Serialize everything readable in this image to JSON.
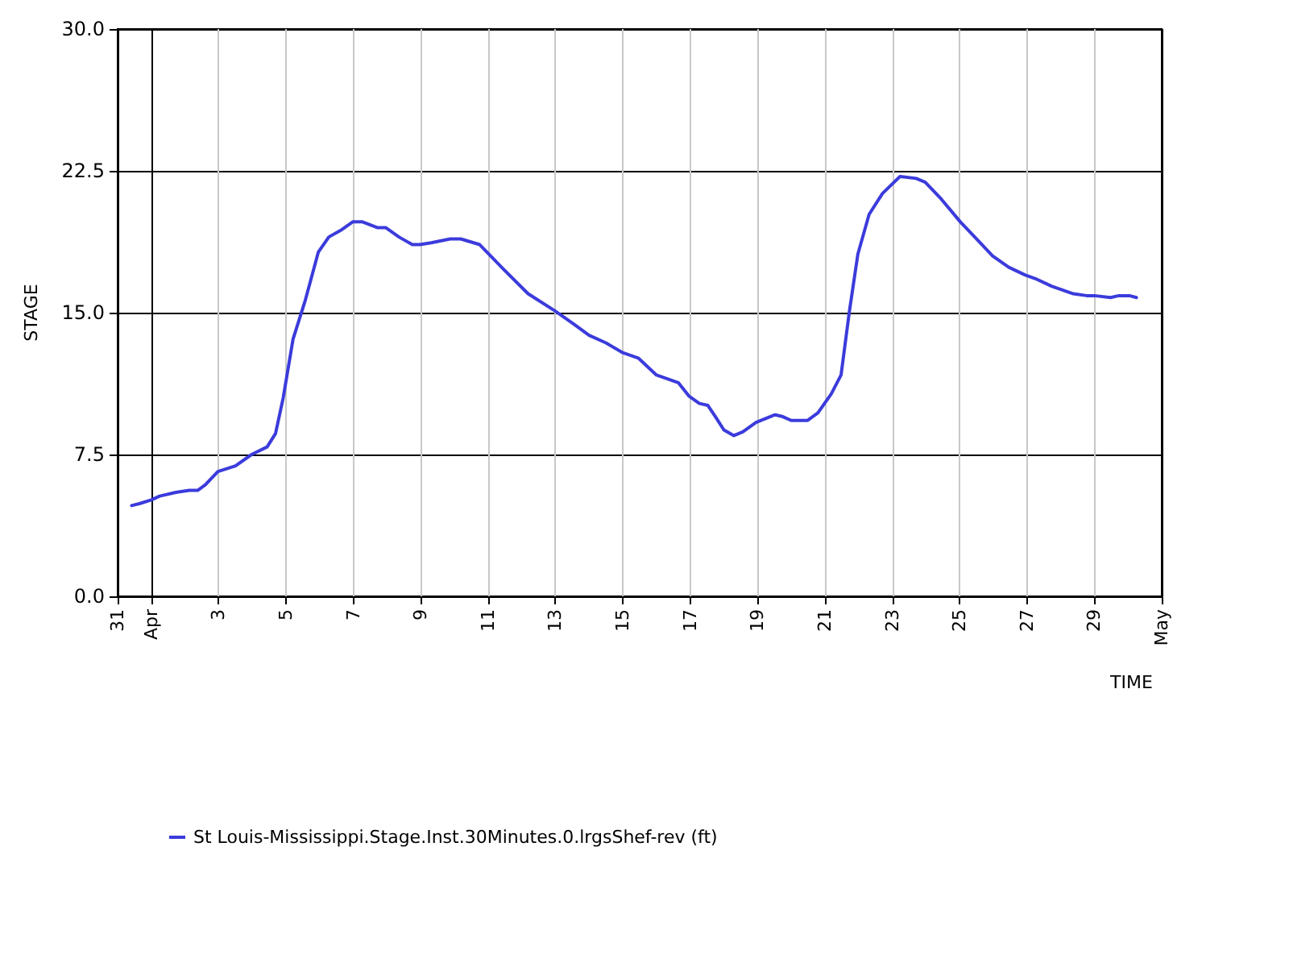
{
  "chart_data": {
    "type": "line",
    "xlabel": "TIME",
    "ylabel": "STAGE",
    "xlim": [
      "--03-31",
      "--05-01"
    ],
    "xticks": [
      {
        "value": "--03-31",
        "label": "31"
      },
      {
        "value": "--04-01",
        "label": "Apr"
      },
      {
        "value": "--04-03",
        "label": "3"
      },
      {
        "value": "--04-05",
        "label": "5"
      },
      {
        "value": "--04-07",
        "label": "7"
      },
      {
        "value": "--04-09",
        "label": "9"
      },
      {
        "value": "--04-11",
        "label": "11"
      },
      {
        "value": "--04-13",
        "label": "13"
      },
      {
        "value": "--04-15",
        "label": "15"
      },
      {
        "value": "--04-17",
        "label": "17"
      },
      {
        "value": "--04-19",
        "label": "19"
      },
      {
        "value": "--04-21",
        "label": "21"
      },
      {
        "value": "--04-23",
        "label": "23"
      },
      {
        "value": "--04-25",
        "label": "25"
      },
      {
        "value": "--04-27",
        "label": "27"
      },
      {
        "value": "--04-29",
        "label": "29"
      },
      {
        "value": "--05-01",
        "label": "May"
      }
    ],
    "ylim": [
      0,
      30
    ],
    "yticks": [
      {
        "value": 0,
        "label": "0.0"
      },
      {
        "value": 7.5,
        "label": "7.5"
      },
      {
        "value": 15,
        "label": "15.0"
      },
      {
        "value": 22.5,
        "label": "22.5"
      },
      {
        "value": 30,
        "label": "30.0"
      }
    ],
    "grid": true,
    "legend": "bottom",
    "marker": "none",
    "line_style": "solid",
    "series": [
      {
        "name": "St Louis-Mississippi.Stage.Inst.30Minutes.0.lrgsShef-rev (ft)",
        "color": "#3b3bdc",
        "x": [
          "--03-31T10:00",
          "--03-31T15:30",
          "--04-01T00:00",
          "--04-01T06:00",
          "--04-01T17:30",
          "--04-02T03:00",
          "--04-02T09:00",
          "--04-02T14:30",
          "--04-02T23:30",
          "--04-03T12:00",
          "--04-03T23:30",
          "--04-04T10:30",
          "--04-04T16:30",
          "--04-04T22:00",
          "--04-05T05:00",
          "--04-05T13:30",
          "--04-05T23:00",
          "--04-06T06:30",
          "--04-06T16:00",
          "--04-06T23:30",
          "--04-07T06:30",
          "--04-07T17:00",
          "--04-07T23:00",
          "--04-08T08:30",
          "--04-08T18:00",
          "--04-08T23:30",
          "--04-09T07:30",
          "--04-09T21:00",
          "--04-10T04:30",
          "--04-10T18:00",
          "--04-11T11:00",
          "--04-12T04:30",
          "--04-12T23:30",
          "--04-13T13:00",
          "--04-14T00:00",
          "--04-14T12:00",
          "--04-14T23:30",
          "--04-15T11:00",
          "--04-16T00:00",
          "--04-16T15:30",
          "--04-16T23:00",
          "--04-17T06:30",
          "--04-17T12:30",
          "--04-17T18:00",
          "--04-18T00:00",
          "--04-18T07:00",
          "--04-18T13:30",
          "--04-18T23:00",
          "--04-19T12:30",
          "--04-19T18:00",
          "--04-20T00:00",
          "--04-20T11:30",
          "--04-20T19:00",
          "--04-21T04:30",
          "--04-21T11:30",
          "--04-21T17:30",
          "--04-21T23:30",
          "--04-22T07:30",
          "--04-22T17:00",
          "--04-23T05:30",
          "--04-23T17:00",
          "--04-23T23:30",
          "--04-24T11:00",
          "--04-25T00:30",
          "--04-25T12:00",
          "--04-25T23:30",
          "--04-26T11:00",
          "--04-26T22:30",
          "--04-27T06:00",
          "--04-27T17:30",
          "--04-28T09:00",
          "--04-28T18:30",
          "--04-29T00:00",
          "--04-29T11:30",
          "--04-29T17:30",
          "--04-30T01:00",
          "--04-30T06:00"
        ],
        "values": [
          4.8,
          4.9,
          5.1,
          5.3,
          5.5,
          5.6,
          5.6,
          5.9,
          6.6,
          6.9,
          7.5,
          7.9,
          8.6,
          10.5,
          13.6,
          15.6,
          18.2,
          19.0,
          19.4,
          19.8,
          19.8,
          19.5,
          19.5,
          19.0,
          18.6,
          18.6,
          18.7,
          18.9,
          18.9,
          18.6,
          17.3,
          16.0,
          15.1,
          14.4,
          13.8,
          13.4,
          12.9,
          12.6,
          11.7,
          11.3,
          10.6,
          10.2,
          10.1,
          9.5,
          8.8,
          8.5,
          8.7,
          9.2,
          9.6,
          9.5,
          9.3,
          9.3,
          9.7,
          10.7,
          11.7,
          15.1,
          18.1,
          20.2,
          21.3,
          22.2,
          22.1,
          21.9,
          21.0,
          19.8,
          18.9,
          18.0,
          17.4,
          17.0,
          16.8,
          16.4,
          16.0,
          15.9,
          15.9,
          15.8,
          15.9,
          15.9,
          15.8
        ]
      }
    ]
  }
}
